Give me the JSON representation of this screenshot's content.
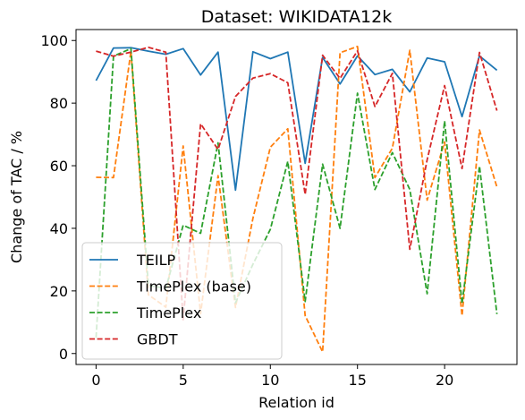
{
  "chart_data": {
    "type": "line",
    "title": "Dataset: WIKIDATA12k",
    "xlabel": "Relation id",
    "ylabel": "Change of TAC / %",
    "xlim": [
      -1.15,
      24.15
    ],
    "ylim": [
      -3.5,
      103.5
    ],
    "xticks": [
      0,
      5,
      10,
      15,
      20
    ],
    "yticks": [
      0,
      20,
      40,
      60,
      80,
      100
    ],
    "grid": false,
    "legend_position": "lower-left",
    "x": [
      0,
      1,
      2,
      3,
      4,
      5,
      6,
      7,
      8,
      9,
      10,
      11,
      12,
      13,
      14,
      15,
      16,
      17,
      18,
      19,
      20,
      21,
      22,
      23
    ],
    "series": [
      {
        "name": "TEILP",
        "color": "#1f77b4",
        "style": "solid",
        "values": [
          87.2,
          97.6,
          97.7,
          96.6,
          95.6,
          97.4,
          89.0,
          96.3,
          52.2,
          96.4,
          94.2,
          96.3,
          60.8,
          94.6,
          86.1,
          95.1,
          89.1,
          90.8,
          83.6,
          94.4,
          93.2,
          75.7,
          95.1,
          90.5
        ]
      },
      {
        "name": "TimePlex (base)",
        "color": "#ff7f0e",
        "style": "dashed",
        "values": [
          56.3,
          56.2,
          96.6,
          18.8,
          14.8,
          66.3,
          12.7,
          56.8,
          14.7,
          43.2,
          65.9,
          71.8,
          12.1,
          0.5,
          96.1,
          98.1,
          56.2,
          65.6,
          96.9,
          49.0,
          67.6,
          12.1,
          71.4,
          53.2
        ]
      },
      {
        "name": "TimePlex",
        "color": "#2ca02c",
        "style": "dashed",
        "values": [
          5.1,
          95.0,
          97.4,
          21.8,
          20.8,
          41.0,
          38.4,
          67.3,
          16.2,
          28.5,
          39.7,
          61.4,
          16.6,
          60.5,
          40.0,
          83.2,
          52.4,
          64.2,
          52.4,
          19.1,
          74.3,
          15.9,
          59.9,
          12.6
        ]
      },
      {
        "name": "GBDT",
        "color": "#d62728",
        "style": "dashed",
        "values": [
          96.6,
          95.0,
          96.3,
          97.8,
          96.3,
          10.8,
          73.4,
          65.2,
          82.1,
          88.0,
          89.4,
          86.5,
          50.8,
          95.3,
          87.9,
          96.7,
          78.9,
          89.5,
          33.3,
          61.9,
          85.6,
          59.1,
          96.2,
          77.6
        ]
      }
    ]
  }
}
